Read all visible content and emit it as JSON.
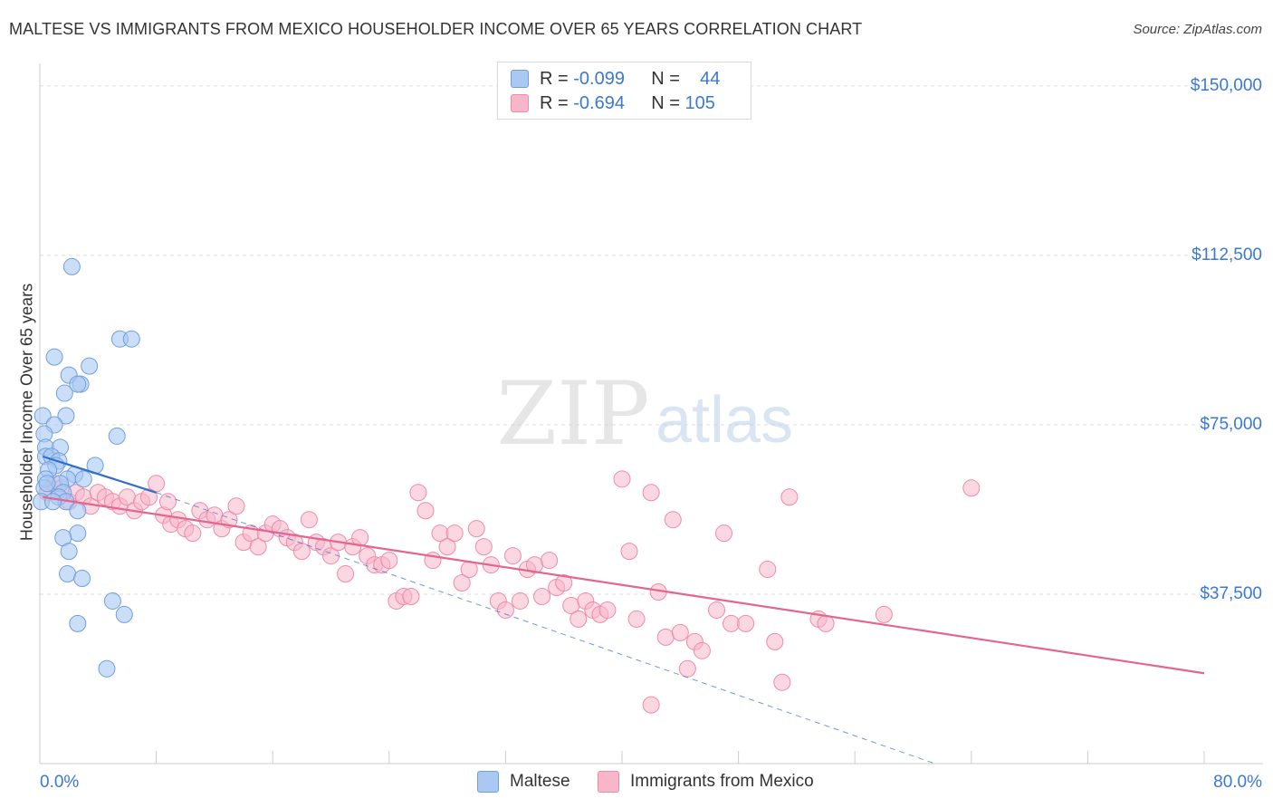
{
  "header": {
    "title": "MALTESE VS IMMIGRANTS FROM MEXICO HOUSEHOLDER INCOME OVER 65 YEARS CORRELATION CHART",
    "source": "Source: ZipAtlas.com"
  },
  "watermark": {
    "zip": "ZIP",
    "atlas": "atlas"
  },
  "legend": {
    "rows": [
      {
        "r_label": "R =",
        "r_value": "-0.099",
        "n_label": "N =",
        "n_value": "44",
        "color": "#a9c8f2"
      },
      {
        "r_label": "R =",
        "r_value": "-0.694",
        "n_label": "N =",
        "n_value": "105",
        "color": "#f7b6ca"
      }
    ]
  },
  "bottom_legend": [
    "Maltese",
    "Immigrants from Mexico"
  ],
  "colors": {
    "blue_fill": "#a9c8f2",
    "blue_stroke": "#6f9fe0",
    "blue_line": "#2f6fcc",
    "pink_fill": "#f7b6ca",
    "pink_stroke": "#ef8aab",
    "pink_line": "#e4658f",
    "grid": "#dddddd",
    "tick_text": "#3b78d0"
  },
  "chart_data": {
    "type": "scatter",
    "title": "MALTESE VS IMMIGRANTS FROM MEXICO HOUSEHOLDER INCOME OVER 65 YEARS CORRELATION CHART",
    "xlabel": "",
    "ylabel": "Householder Income Over 65 years",
    "xlim": [
      0,
      80
    ],
    "ylim": [
      0,
      155000
    ],
    "x_tick_labels": [
      {
        "value": 0,
        "label": "0.0%"
      },
      {
        "value": 80,
        "label": "80.0%"
      }
    ],
    "y_ticks": [
      {
        "value": 37500,
        "label": "$37,500"
      },
      {
        "value": 75000,
        "label": "$75,000"
      },
      {
        "value": 112500,
        "label": "$112,500"
      },
      {
        "value": 150000,
        "label": "$150,000"
      }
    ],
    "series": [
      {
        "name": "Maltese",
        "R": -0.099,
        "N": 44,
        "trend": {
          "x0": 0.2,
          "y0": 68000,
          "x1": 8.0,
          "y1": 60000
        },
        "trend_extension": {
          "x0": 8.0,
          "y0": 60000,
          "x1": 61.5,
          "y1": 0
        },
        "points": [
          [
            2.2,
            110000
          ],
          [
            5.5,
            94000
          ],
          [
            6.3,
            94000
          ],
          [
            1.0,
            90000
          ],
          [
            3.4,
            88000
          ],
          [
            2.0,
            86000
          ],
          [
            2.8,
            84000
          ],
          [
            2.6,
            84000
          ],
          [
            1.7,
            82000
          ],
          [
            0.2,
            77000
          ],
          [
            1.8,
            77000
          ],
          [
            1.0,
            75000
          ],
          [
            5.3,
            72500
          ],
          [
            0.3,
            73000
          ],
          [
            0.4,
            70000
          ],
          [
            1.4,
            70000
          ],
          [
            0.4,
            68000
          ],
          [
            0.8,
            68000
          ],
          [
            1.3,
            67000
          ],
          [
            1.1,
            66000
          ],
          [
            3.8,
            66000
          ],
          [
            0.6,
            65000
          ],
          [
            2.4,
            64000
          ],
          [
            1.9,
            63000
          ],
          [
            0.4,
            63000
          ],
          [
            3.0,
            63000
          ],
          [
            1.4,
            62000
          ],
          [
            0.3,
            61000
          ],
          [
            1.6,
            60000
          ],
          [
            1.3,
            59000
          ],
          [
            1.8,
            58000
          ],
          [
            0.1,
            58000
          ],
          [
            0.9,
            58000
          ],
          [
            2.6,
            56000
          ],
          [
            2.6,
            51000
          ],
          [
            1.6,
            50000
          ],
          [
            2.0,
            47000
          ],
          [
            1.9,
            42000
          ],
          [
            2.9,
            41000
          ],
          [
            5.0,
            36000
          ],
          [
            5.8,
            33000
          ],
          [
            2.6,
            31000
          ],
          [
            4.6,
            21000
          ],
          [
            0.5,
            62000
          ]
        ]
      },
      {
        "name": "Immigrants from Mexico",
        "R": -0.694,
        "N": 105,
        "trend": {
          "x0": 0.2,
          "y0": 59000,
          "x1": 80.0,
          "y1": 20000
        },
        "points": [
          [
            0.5,
            60000
          ],
          [
            1.0,
            62000
          ],
          [
            1.5,
            61000
          ],
          [
            2.0,
            58000
          ],
          [
            2.5,
            60000
          ],
          [
            3.0,
            59000
          ],
          [
            3.5,
            57000
          ],
          [
            4.0,
            60000
          ],
          [
            4.5,
            59000
          ],
          [
            5.0,
            58000
          ],
          [
            5.5,
            57000
          ],
          [
            6.0,
            59000
          ],
          [
            6.5,
            56000
          ],
          [
            7.0,
            58000
          ],
          [
            7.5,
            59000
          ],
          [
            8.0,
            62000
          ],
          [
            8.5,
            55000
          ],
          [
            9.0,
            53000
          ],
          [
            9.5,
            54000
          ],
          [
            10.0,
            52000
          ],
          [
            10.5,
            51000
          ],
          [
            11.0,
            56000
          ],
          [
            11.5,
            54000
          ],
          [
            12.0,
            55000
          ],
          [
            12.5,
            52000
          ],
          [
            13.0,
            54000
          ],
          [
            13.5,
            57000
          ],
          [
            14.0,
            49000
          ],
          [
            14.5,
            51000
          ],
          [
            15.0,
            48000
          ],
          [
            15.5,
            51000
          ],
          [
            16.0,
            53000
          ],
          [
            16.5,
            52000
          ],
          [
            17.0,
            50000
          ],
          [
            17.5,
            49000
          ],
          [
            18.0,
            47000
          ],
          [
            18.5,
            54000
          ],
          [
            19.0,
            49000
          ],
          [
            19.5,
            48000
          ],
          [
            20.0,
            46000
          ],
          [
            20.5,
            49000
          ],
          [
            21.0,
            42000
          ],
          [
            21.5,
            48000
          ],
          [
            22.0,
            50000
          ],
          [
            22.5,
            46000
          ],
          [
            23.0,
            44000
          ],
          [
            23.5,
            44000
          ],
          [
            24.0,
            45000
          ],
          [
            24.5,
            36000
          ],
          [
            25.0,
            37000
          ],
          [
            25.5,
            37000
          ],
          [
            26.0,
            60000
          ],
          [
            26.5,
            56000
          ],
          [
            27.0,
            45000
          ],
          [
            27.5,
            51000
          ],
          [
            28.0,
            48000
          ],
          [
            28.5,
            51000
          ],
          [
            29.0,
            40000
          ],
          [
            29.5,
            43000
          ],
          [
            30.0,
            52000
          ],
          [
            30.5,
            48000
          ],
          [
            31.0,
            44000
          ],
          [
            31.5,
            36000
          ],
          [
            32.0,
            34000
          ],
          [
            32.5,
            46000
          ],
          [
            33.0,
            36000
          ],
          [
            33.5,
            43000
          ],
          [
            34.0,
            44000
          ],
          [
            34.5,
            37000
          ],
          [
            35.0,
            45000
          ],
          [
            35.5,
            39000
          ],
          [
            36.0,
            40000
          ],
          [
            36.5,
            35000
          ],
          [
            37.0,
            32000
          ],
          [
            37.5,
            36000
          ],
          [
            38.0,
            34000
          ],
          [
            38.5,
            33000
          ],
          [
            39.0,
            34000
          ],
          [
            40.0,
            63000
          ],
          [
            40.5,
            47000
          ],
          [
            41.0,
            32000
          ],
          [
            42.0,
            60000
          ],
          [
            42.5,
            38000
          ],
          [
            43.0,
            28000
          ],
          [
            43.5,
            54000
          ],
          [
            44.0,
            29000
          ],
          [
            44.5,
            21000
          ],
          [
            45.0,
            27000
          ],
          [
            45.5,
            25000
          ],
          [
            46.5,
            34000
          ],
          [
            47.0,
            51000
          ],
          [
            47.5,
            31000
          ],
          [
            48.5,
            31000
          ],
          [
            50.0,
            43000
          ],
          [
            50.5,
            27000
          ],
          [
            51.0,
            18000
          ],
          [
            51.5,
            59000
          ],
          [
            53.5,
            32000
          ],
          [
            54.0,
            31000
          ],
          [
            58.0,
            33000
          ],
          [
            64.0,
            61000
          ],
          [
            42.0,
            13000
          ],
          [
            8.8,
            58000
          ]
        ]
      }
    ]
  }
}
